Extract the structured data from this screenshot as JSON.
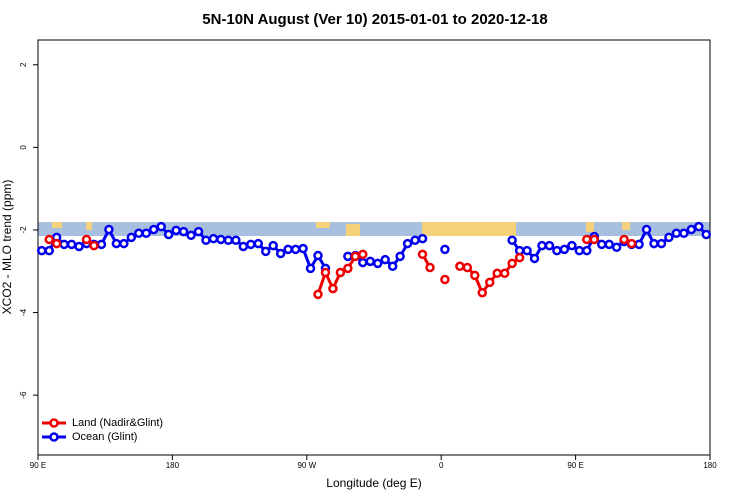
{
  "chart_data": {
    "type": "line",
    "title": "5N-10N August (Ver 10)   2015-01-01 to 2020-12-18",
    "x_label": "Longitude (deg E)",
    "y_label": "XCO2 - MLO trend (ppm)",
    "x": [
      92.5,
      97.5,
      102.5,
      107.5,
      112.5,
      117.5,
      122.5,
      127.5,
      132.5,
      137.5,
      142.5,
      147.5,
      152.5,
      157.5,
      162.5,
      167.5,
      172.5,
      177.5,
      182.5,
      187.5,
      192.5,
      197.5,
      202.5,
      207.5,
      212.5,
      217.5,
      222.5,
      227.5,
      232.5,
      237.5,
      242.5,
      247.5,
      252.5,
      257.5,
      262.5,
      267.5,
      272.5,
      277.5,
      282.5,
      287.5,
      292.5,
      297.5,
      302.5,
      307.5,
      312.5,
      317.5,
      322.5,
      327.5,
      332.5,
      337.5,
      342.5,
      347.5,
      352.5,
      357.5,
      362.5,
      367.5,
      372.5,
      377.5,
      382.5,
      387.5,
      392.5,
      397.5,
      402.5,
      407.5,
      412.5,
      417.5,
      422.5,
      427.5,
      432.5,
      437.5,
      442.5,
      447.5,
      452.5,
      457.5,
      462.5,
      467.5,
      472.5,
      477.5,
      482.5,
      487.5,
      492.5,
      497.5,
      502.5,
      507.5,
      512.5,
      517.5,
      522.5,
      527.5,
      532.5,
      537.5
    ],
    "series": [
      {
        "name": "Ocean (Glint)",
        "color": "#0000ee",
        "values": [
          -2.5,
          -2.5,
          -2.18,
          -2.35,
          -2.35,
          -2.4,
          -2.33,
          -2.35,
          -2.35,
          -1.99,
          -2.33,
          -2.33,
          -2.18,
          -2.08,
          -2.08,
          -1.99,
          -1.92,
          -2.11,
          -2.01,
          -2.04,
          -2.13,
          -2.04,
          -2.25,
          -2.21,
          -2.23,
          -2.25,
          -2.25,
          -2.4,
          -2.35,
          -2.33,
          -2.52,
          -2.38,
          -2.57,
          -2.47,
          -2.47,
          -2.45,
          -2.93,
          -2.62,
          -2.93,
          null,
          null,
          -2.64,
          -2.62,
          -2.79,
          -2.76,
          -2.81,
          -2.72,
          -2.88,
          -2.64,
          -2.33,
          -2.25,
          -2.21,
          null,
          null,
          -2.47,
          null,
          null,
          null,
          null,
          null,
          null,
          null,
          null,
          -2.25,
          -2.5,
          -2.5,
          -2.69,
          -2.38,
          -2.38,
          -2.5,
          -2.47,
          -2.38,
          -2.5,
          -2.5,
          -2.16,
          -2.35,
          -2.35,
          -2.42,
          -2.28,
          -2.35,
          -2.35,
          -1.99,
          -2.33,
          -2.33,
          -2.18,
          -2.08,
          -2.08,
          -1.99,
          -1.92,
          -2.11
        ]
      },
      {
        "name": "Land (Nadir&Glint)",
        "color": "#ee0000",
        "values": [
          null,
          -2.23,
          -2.33,
          null,
          null,
          null,
          -2.23,
          -2.38,
          null,
          null,
          null,
          null,
          null,
          null,
          null,
          null,
          null,
          null,
          null,
          null,
          null,
          null,
          null,
          null,
          null,
          null,
          null,
          null,
          null,
          null,
          null,
          null,
          null,
          null,
          null,
          null,
          null,
          -3.56,
          -3.03,
          -3.42,
          -3.03,
          -2.93,
          -2.64,
          -2.59,
          null,
          null,
          null,
          null,
          null,
          null,
          null,
          -2.59,
          -2.91,
          null,
          -3.2,
          null,
          -2.88,
          -2.91,
          -3.1,
          -3.52,
          -3.27,
          -3.05,
          -3.05,
          -2.81,
          -2.67,
          null,
          null,
          null,
          null,
          null,
          null,
          null,
          null,
          -2.23,
          -2.23,
          null,
          null,
          null,
          -2.23,
          -2.33,
          null,
          null,
          null,
          null,
          null,
          null,
          null,
          null,
          null,
          null
        ]
      }
    ],
    "xlim": [
      90,
      540
    ],
    "xticks": [
      {
        "value": 90,
        "label": "90 E"
      },
      180,
      {
        "value": 270,
        "label": "90 W"
      },
      {
        "value": 360,
        "label": "0"
      },
      {
        "value": 450,
        "label": "90 E"
      },
      {
        "value": 540,
        "label": "180"
      }
    ],
    "ylim": [
      -7.45,
      2.6
    ],
    "yticks": [
      2,
      0,
      -2,
      -4,
      -6
    ],
    "legend": "bottom-left"
  }
}
